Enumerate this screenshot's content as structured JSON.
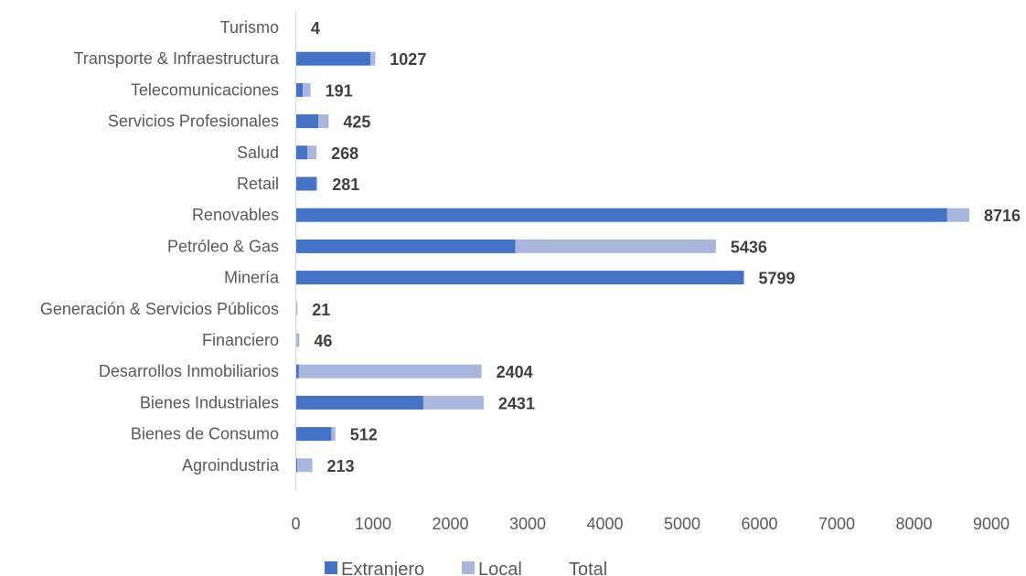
{
  "chart_data": {
    "type": "bar",
    "orientation": "horizontal",
    "stacked": true,
    "categories": [
      "Agroindustria",
      "Bienes de Consumo",
      "Bienes Industriales",
      "Desarrollos Inmobiliarios",
      "Financiero",
      "Generación & Servicios Públicos",
      "Minería",
      "Petróleo & Gas",
      "Renovables",
      "Retail",
      "Salud",
      "Servicios Profesionales",
      "Telecomunicaciones",
      "Transporte & Infraestructura",
      "Turismo"
    ],
    "series": [
      {
        "name": "Extranjero",
        "color": "#4472C4",
        "values": [
          20,
          460,
          1650,
          40,
          5,
          5,
          5799,
          2840,
          8430,
          265,
          150,
          290,
          90,
          965,
          0
        ]
      },
      {
        "name": "Local",
        "color": "#A9B7DF",
        "values": [
          193,
          52,
          781,
          2364,
          41,
          16,
          0,
          2596,
          286,
          16,
          118,
          135,
          101,
          62,
          4
        ]
      },
      {
        "name": "Total",
        "values": [
          213,
          512,
          2431,
          2404,
          46,
          21,
          5799,
          5436,
          8716,
          281,
          268,
          425,
          191,
          1027,
          4
        ]
      }
    ],
    "xlim": [
      0,
      9000
    ],
    "xticks": [
      "0",
      "1000",
      "2000",
      "3000",
      "4000",
      "5000",
      "6000",
      "7000",
      "8000",
      "9000"
    ],
    "legend_position": "bottom",
    "grid": false
  }
}
